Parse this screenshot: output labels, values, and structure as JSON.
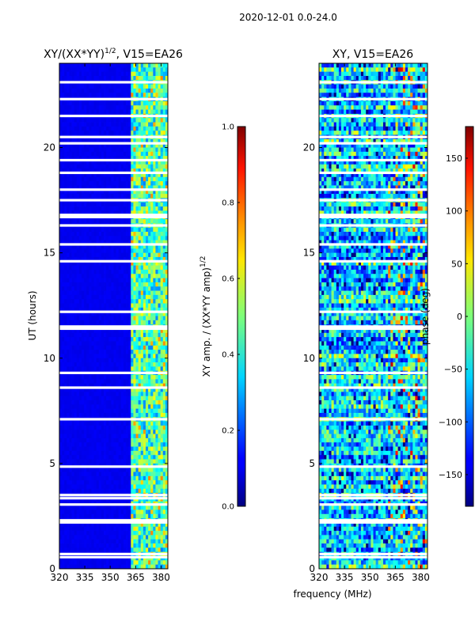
{
  "suptitle": "2020-12-01 0.0-24.0",
  "xlabel_shared": "frequency (MHz)",
  "chart_data": [
    {
      "type": "heatmap",
      "title": "XY/(XX*YY)^1/2, V15=EA26",
      "title_main": "XY/(XX*YY)",
      "title_sup": "1/2",
      "title_tail": ", V15=EA26",
      "xlabel": "frequency (MHz)",
      "ylabel": "UT (hours)",
      "xlim": [
        320,
        384
      ],
      "ylim": [
        0,
        24
      ],
      "xticks": [
        320,
        335,
        350,
        365,
        380
      ],
      "yticks": [
        0,
        5,
        10,
        15,
        20
      ],
      "band_start_mhz": 361.5,
      "flagged_ut_hours": [
        0.55,
        0.7,
        2.2,
        2.3,
        3.05,
        3.35,
        3.5,
        4.85,
        7.1,
        8.6,
        9.3,
        11.4,
        11.5,
        12.2,
        14.6,
        15.4,
        16.3,
        16.7,
        16.8,
        17.5,
        18.0,
        18.8,
        19.4,
        20.2,
        20.5,
        21.5,
        22.3,
        23.1
      ],
      "colorbar": {
        "label_main": "XY amp. / (XX*YY amp)",
        "label_sup": "1/2",
        "range": [
          0.0,
          1.0
        ],
        "ticks": [
          "0.0",
          "0.2",
          "0.4",
          "0.6",
          "0.8",
          "1.0"
        ]
      }
    },
    {
      "type": "heatmap",
      "title": "XY, V15=EA26",
      "xlabel": "frequency (MHz)",
      "ylabel": "",
      "xlim": [
        320,
        384
      ],
      "ylim": [
        0,
        24
      ],
      "xticks": [
        320,
        335,
        350,
        365,
        380
      ],
      "yticks": [
        0,
        5,
        10,
        15,
        20
      ],
      "flagged_ut_hours": [
        0.55,
        0.7,
        2.2,
        2.3,
        3.05,
        3.35,
        3.5,
        4.85,
        7.1,
        8.6,
        9.3,
        11.4,
        11.5,
        12.2,
        14.6,
        15.4,
        16.3,
        16.7,
        16.8,
        17.5,
        18.0,
        18.8,
        19.4,
        20.2,
        20.5,
        21.5,
        22.3,
        23.1
      ],
      "colorbar": {
        "label": "phase (deg)",
        "range": [
          -180,
          180
        ],
        "ticks": [
          "150",
          "100",
          "50",
          "0",
          "−50",
          "−100",
          "−150"
        ],
        "tick_values": [
          150,
          100,
          50,
          0,
          -50,
          -100,
          -150
        ]
      }
    }
  ]
}
